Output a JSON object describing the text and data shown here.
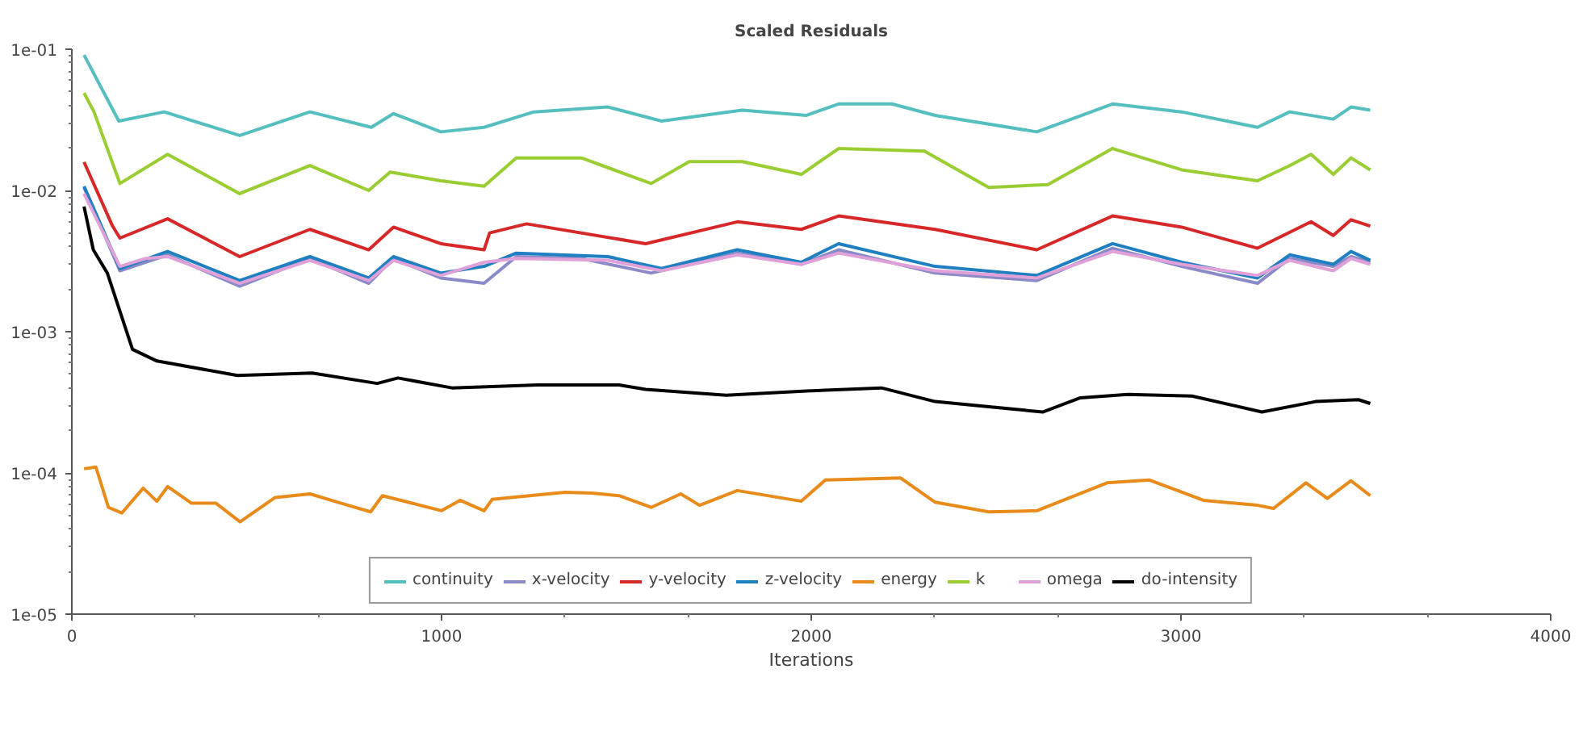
{
  "chart_data": {
    "type": "line",
    "title": "Scaled Residuals",
    "xlabel": "Iterations",
    "xlim": [
      0,
      4000
    ],
    "xticks": [
      0,
      1000,
      2000,
      3000,
      4000
    ],
    "ylim": [
      1e-05,
      0.1
    ],
    "yticks": [
      {
        "value": 0.1,
        "label": "1e-01"
      },
      {
        "value": 0.01,
        "label": "1e-02"
      },
      {
        "value": 0.001,
        "label": "1e-03"
      },
      {
        "value": 0.0001,
        "label": "1e-04"
      },
      {
        "value": 1e-05,
        "label": "1e-05"
      }
    ],
    "log": "y",
    "grid": false,
    "legend": "bottom",
    "marker": "none",
    "line_style": "solid",
    "series": [
      {
        "name": "continuity",
        "color": "#55bfbf",
        "x": [
          33,
          127,
          250,
          454,
          644,
          810,
          870,
          998,
          1115,
          1250,
          1450,
          1595,
          1813,
          1987,
          2074,
          2218,
          2335,
          2610,
          2815,
          3002,
          3207,
          3294,
          3412,
          3460,
          3512
        ],
        "values": [
          0.091,
          0.031,
          0.036,
          0.0245,
          0.036,
          0.028,
          0.035,
          0.026,
          0.028,
          0.036,
          0.039,
          0.031,
          0.037,
          0.034,
          0.041,
          0.041,
          0.034,
          0.026,
          0.041,
          0.036,
          0.028,
          0.036,
          0.032,
          0.039,
          0.037
        ]
      },
      {
        "name": "x-velocity",
        "color": "#8a8ac8",
        "x": [
          33,
          130,
          259,
          454,
          644,
          803,
          870,
          998,
          1115,
          1202,
          1378,
          1567,
          1800,
          1973,
          2074,
          2335,
          2610,
          2815,
          3002,
          3207,
          3294,
          3412,
          3460,
          3512
        ],
        "values": [
          0.0105,
          0.0027,
          0.0035,
          0.0021,
          0.0033,
          0.0022,
          0.0033,
          0.0024,
          0.0022,
          0.0034,
          0.0033,
          0.0026,
          0.0036,
          0.003,
          0.0038,
          0.0026,
          0.0023,
          0.0039,
          0.0029,
          0.0022,
          0.0033,
          0.0029,
          0.0034,
          0.0031
        ]
      },
      {
        "name": "y-velocity",
        "color": "#d62828",
        "x": [
          33,
          110,
          130,
          259,
          454,
          644,
          803,
          870,
          998,
          1115,
          1130,
          1230,
          1552,
          1800,
          1973,
          2074,
          2335,
          2610,
          2815,
          3002,
          3207,
          3352,
          3412,
          3460,
          3512
        ],
        "values": [
          0.0159,
          0.0056,
          0.0046,
          0.0063,
          0.0034,
          0.0053,
          0.0038,
          0.0055,
          0.0042,
          0.0038,
          0.005,
          0.0058,
          0.0042,
          0.006,
          0.0053,
          0.0066,
          0.0053,
          0.0038,
          0.0066,
          0.0055,
          0.0039,
          0.006,
          0.0048,
          0.0062,
          0.0056
        ]
      },
      {
        "name": "z-velocity",
        "color": "#1f7fc0",
        "x": [
          33,
          130,
          259,
          454,
          644,
          803,
          870,
          998,
          1115,
          1202,
          1450,
          1595,
          1800,
          1973,
          2074,
          2335,
          2610,
          2815,
          3002,
          3207,
          3294,
          3412,
          3460,
          3512
        ],
        "values": [
          0.0107,
          0.0028,
          0.0037,
          0.0023,
          0.0034,
          0.0024,
          0.0034,
          0.0026,
          0.0029,
          0.0036,
          0.0034,
          0.0028,
          0.0038,
          0.0031,
          0.0042,
          0.0029,
          0.0025,
          0.0042,
          0.0031,
          0.0024,
          0.0035,
          0.003,
          0.0037,
          0.0032
        ]
      },
      {
        "name": "energy",
        "color": "#e88b1a",
        "x": [
          33,
          65,
          99,
          135,
          193,
          230,
          259,
          324,
          390,
          455,
          550,
          644,
          738,
          808,
          840,
          1000,
          1050,
          1115,
          1137,
          1334,
          1407,
          1480,
          1567,
          1647,
          1698,
          1800,
          1973,
          2038,
          2242,
          2335,
          2480,
          2610,
          2800,
          2915,
          3061,
          3207,
          3250,
          3338,
          3396,
          3460,
          3512
        ],
        "values": [
          0.000107,
          0.00011,
          5.7e-05,
          5.2e-05,
          7.8e-05,
          6.3e-05,
          8e-05,
          6.1e-05,
          6.1e-05,
          4.5e-05,
          6.7e-05,
          7.1e-05,
          6e-05,
          5.3e-05,
          6.9e-05,
          5.4e-05,
          6.4e-05,
          5.4e-05,
          6.5e-05,
          7.3e-05,
          7.2e-05,
          6.9e-05,
          5.7e-05,
          7.1e-05,
          5.9e-05,
          7.5e-05,
          6.3e-05,
          8.9e-05,
          9.2e-05,
          6.2e-05,
          5.3e-05,
          5.4e-05,
          8.5e-05,
          8.9e-05,
          6.4e-05,
          5.9e-05,
          5.6e-05,
          8.5e-05,
          6.6e-05,
          8.8e-05,
          6.9e-05
        ]
      },
      {
        "name": "k",
        "color": "#9acd32",
        "x": [
          33,
          60,
          130,
          259,
          454,
          644,
          803,
          861,
          998,
          1115,
          1202,
          1378,
          1567,
          1670,
          1813,
          1973,
          2074,
          2306,
          2480,
          2640,
          2815,
          3002,
          3207,
          3294,
          3352,
          3412,
          3460,
          3512
        ],
        "values": [
          0.049,
          0.036,
          0.0112,
          0.018,
          0.0095,
          0.015,
          0.01,
          0.0135,
          0.0117,
          0.0107,
          0.017,
          0.017,
          0.0112,
          0.016,
          0.016,
          0.013,
          0.0198,
          0.019,
          0.0105,
          0.011,
          0.0198,
          0.014,
          0.0117,
          0.015,
          0.018,
          0.013,
          0.017,
          0.014
        ]
      },
      {
        "name": "omega",
        "color": "#e0a0d8",
        "x": [
          33,
          130,
          200,
          259,
          454,
          644,
          803,
          870,
          998,
          1115,
          1202,
          1450,
          1595,
          1800,
          1973,
          2074,
          2335,
          2610,
          2815,
          3002,
          3207,
          3294,
          3412,
          3460,
          3512
        ],
        "values": [
          0.0095,
          0.0029,
          0.0033,
          0.0034,
          0.0022,
          0.0032,
          0.0023,
          0.0032,
          0.0025,
          0.0031,
          0.0033,
          0.0032,
          0.0027,
          0.0035,
          0.003,
          0.0036,
          0.0027,
          0.0024,
          0.0037,
          0.003,
          0.0025,
          0.0032,
          0.0027,
          0.0033,
          0.003
        ]
      },
      {
        "name": "do-intensity",
        "color": "#000000",
        "x": [
          33,
          58,
          96,
          164,
          230,
          448,
          650,
          826,
          882,
          1028,
          1260,
          1480,
          1552,
          1770,
          1987,
          2190,
          2335,
          2626,
          2728,
          2856,
          3030,
          3219,
          3364,
          3480,
          3512
        ],
        "values": [
          0.0077,
          0.0038,
          0.0026,
          0.00075,
          0.00062,
          0.00049,
          0.00051,
          0.00043,
          0.00047,
          0.0004,
          0.00042,
          0.00042,
          0.00039,
          0.000355,
          0.00038,
          0.0004,
          0.00032,
          0.00027,
          0.00034,
          0.00036,
          0.00035,
          0.00027,
          0.00032,
          0.00033,
          0.00031
        ]
      }
    ]
  }
}
